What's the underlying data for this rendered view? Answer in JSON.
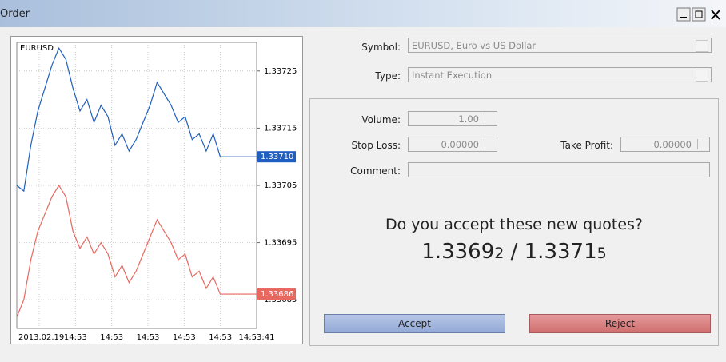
{
  "window": {
    "title": "Order"
  },
  "chart_data": {
    "type": "line",
    "title": "EURUSD",
    "ylim": [
      1.3368,
      1.3373
    ],
    "yticks": [
      1.33685,
      1.33695,
      1.33705,
      1.33715,
      1.33725
    ],
    "grid": true,
    "x_labels": [
      "2013.02.19",
      "14:53",
      "14:53",
      "14:53",
      "14:53",
      "14:53",
      "14:53:41"
    ],
    "series": [
      {
        "color": "#1f5fbf",
        "last": {
          "value": 1.3371,
          "label": "1.33710"
        },
        "values": [
          1.33705,
          1.33704,
          1.33712,
          1.33718,
          1.33722,
          1.33726,
          1.33729,
          1.33727,
          1.33722,
          1.33718,
          1.3372,
          1.33716,
          1.33719,
          1.33717,
          1.33712,
          1.33714,
          1.33711,
          1.33713,
          1.33716,
          1.33719,
          1.33723,
          1.33721,
          1.33719,
          1.33716,
          1.33717,
          1.33713,
          1.33714,
          1.33711,
          1.33714,
          1.3371,
          1.3371,
          1.3371
        ]
      },
      {
        "color": "#e8675f",
        "last": {
          "value": 1.33686,
          "label": "1.33686"
        },
        "values": [
          1.33682,
          1.33685,
          1.33692,
          1.33697,
          1.337,
          1.33703,
          1.33705,
          1.33703,
          1.33697,
          1.33694,
          1.33696,
          1.33693,
          1.33695,
          1.33693,
          1.33689,
          1.33691,
          1.33688,
          1.3369,
          1.33693,
          1.33696,
          1.33699,
          1.33697,
          1.33695,
          1.33692,
          1.33693,
          1.33689,
          1.3369,
          1.33687,
          1.33689,
          1.33686,
          1.33686,
          1.33686
        ]
      }
    ]
  },
  "form": {
    "symbol": {
      "label": "Symbol:",
      "value": "EURUSD, Euro vs US Dollar"
    },
    "type": {
      "label": "Type:",
      "value": "Instant Execution"
    },
    "volume": {
      "label": "Volume:",
      "value": "1.00"
    },
    "stop_loss": {
      "label": "Stop Loss:",
      "value": "0.00000"
    },
    "take_profit": {
      "label": "Take Profit:",
      "value": "0.00000"
    },
    "comment": {
      "label": "Comment:"
    }
  },
  "requote": {
    "question": "Do you accept these new quotes?",
    "bid": "1.33692",
    "separator": "/",
    "ask": "1.33715"
  },
  "buttons": {
    "accept": "Accept",
    "reject": "Reject"
  }
}
